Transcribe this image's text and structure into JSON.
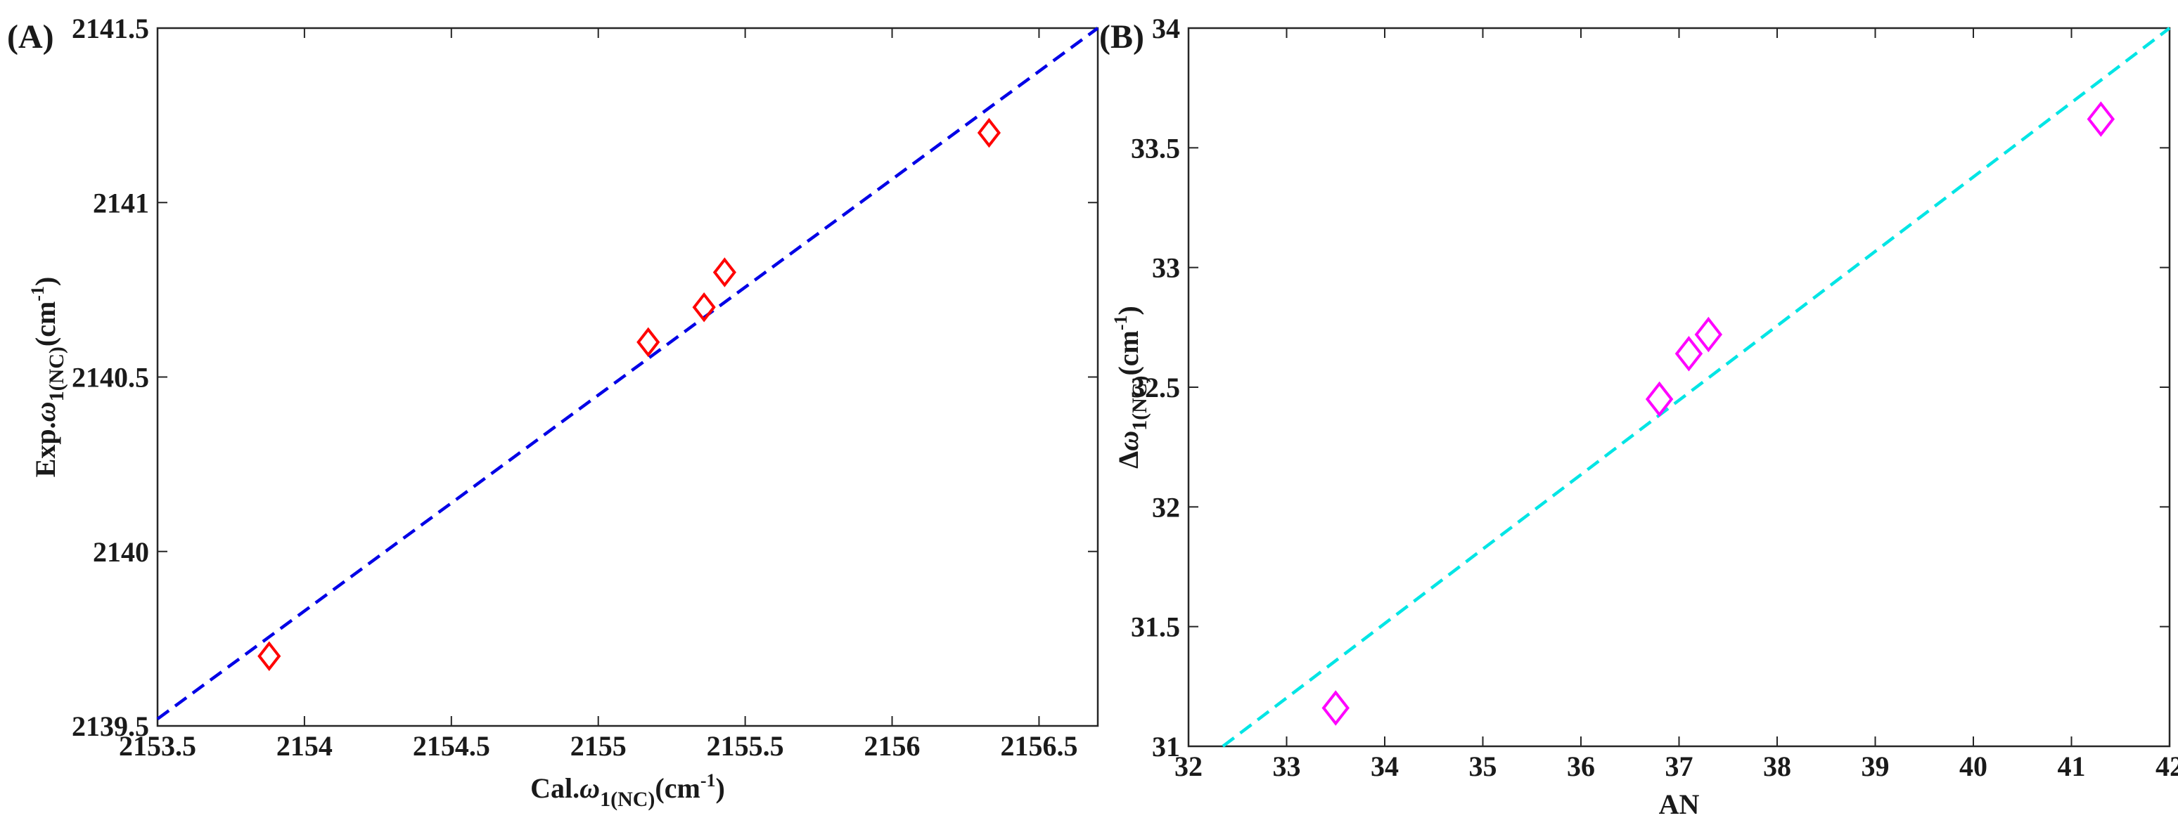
{
  "chart_data": [
    {
      "type": "scatter",
      "panel_label": "(A)",
      "xlabel": {
        "prefix": "Cal.",
        "symbol": "ω",
        "sub": "1(NC)",
        "unit_open": "(cm",
        "sup": "-1",
        "unit_close": ")"
      },
      "ylabel": {
        "prefix": "Exp.",
        "symbol": "ω",
        "sub": "1(NC)",
        "unit_open": "(cm",
        "sup": "-1",
        "unit_close": ")"
      },
      "xlim": [
        2153.5,
        2156.7
      ],
      "ylim": [
        2139.5,
        2141.5
      ],
      "xticks": [
        2153.5,
        2154,
        2154.5,
        2155,
        2155.5,
        2156,
        2156.5
      ],
      "xtick_labels": [
        "2153.5",
        "2154",
        "2154.5",
        "2155",
        "2155.5",
        "2156",
        "2156.5"
      ],
      "yticks": [
        2139.5,
        2140,
        2140.5,
        2141,
        2141.5
      ],
      "ytick_labels": [
        "2139.5",
        "2140",
        "2140.5",
        "2141",
        "2141.5"
      ],
      "series": [
        {
          "name": "data",
          "marker": "diamond",
          "color": "#ff0000",
          "x": [
            2153.88,
            2155.17,
            2155.36,
            2155.43,
            2156.33
          ],
          "y": [
            2139.7,
            2140.6,
            2140.7,
            2140.8,
            2141.2
          ]
        }
      ],
      "fit_line": {
        "color": "#0000e6",
        "style": "dashed",
        "x": [
          2153.5,
          2156.7
        ],
        "y": [
          2139.52,
          2141.5
        ]
      }
    },
    {
      "type": "scatter",
      "panel_label": "(B)",
      "xlabel": {
        "prefix": "AN",
        "symbol": "",
        "sub": "",
        "unit_open": "",
        "sup": "",
        "unit_close": ""
      },
      "ylabel": {
        "prefix": "Δ",
        "symbol": "ω",
        "sub": "1(NC)",
        "unit_open": "(cm",
        "sup": "-1",
        "unit_close": ")"
      },
      "xlim": [
        32,
        42
      ],
      "ylim": [
        31,
        34
      ],
      "xticks": [
        32,
        33,
        34,
        35,
        36,
        37,
        38,
        39,
        40,
        41,
        42
      ],
      "xtick_labels": [
        "32",
        "33",
        "34",
        "35",
        "36",
        "37",
        "38",
        "39",
        "40",
        "41",
        "42"
      ],
      "yticks": [
        31,
        31.5,
        32,
        32.5,
        33,
        33.5,
        34
      ],
      "ytick_labels": [
        "31",
        "31.5",
        "32",
        "32.5",
        "33",
        "33.5",
        "34"
      ],
      "series": [
        {
          "name": "data",
          "marker": "diamond",
          "color": "#ff00ff",
          "x": [
            33.5,
            36.8,
            37.1,
            37.3,
            41.3
          ],
          "y": [
            31.16,
            32.45,
            32.64,
            32.72,
            33.62
          ]
        }
      ],
      "fit_line": {
        "color": "#00e5e5",
        "style": "dashed",
        "x": [
          32.35,
          42
        ],
        "y": [
          31.0,
          34.0
        ]
      }
    }
  ]
}
